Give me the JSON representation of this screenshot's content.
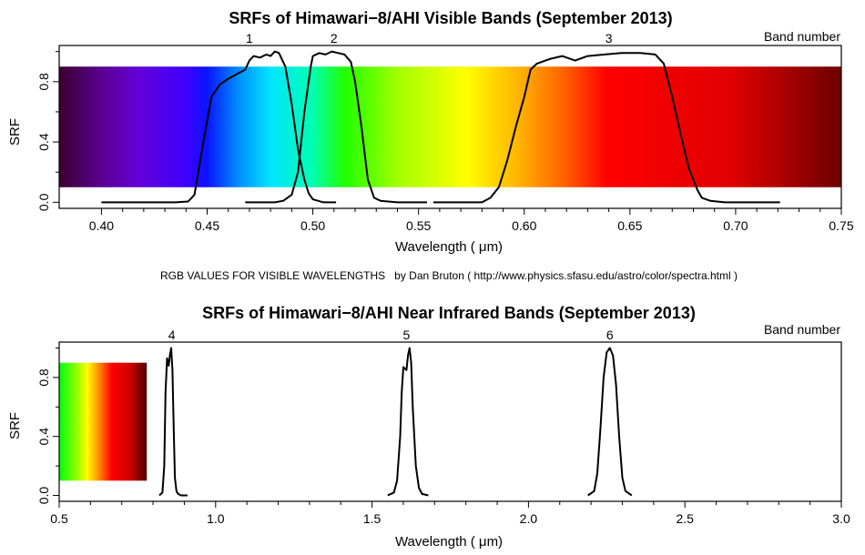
{
  "chart_data": [
    {
      "type": "line",
      "title": "SRFs of Himawari−8/AHI Visible Bands (September 2013)",
      "xlabel": "Wavelength ( μm)",
      "ylabel": "SRF",
      "xlim": [
        0.38,
        0.75
      ],
      "ylim": [
        -0.04,
        1.04
      ],
      "xticks": [
        0.4,
        0.45,
        0.5,
        0.55,
        0.6,
        0.65,
        0.7,
        0.75
      ],
      "xtick_labels": [
        "0.40",
        "0.45",
        "0.50",
        "0.55",
        "0.60",
        "0.65",
        "0.70",
        "0.75"
      ],
      "yticks": [
        0.0,
        0.4,
        0.8
      ],
      "ytick_labels": [
        "0.0",
        "0.4",
        "0.8"
      ],
      "band_number_label": "Band number",
      "spectrum_background": {
        "x_range": [
          0.38,
          0.75
        ],
        "y_range": [
          0.1,
          0.9
        ]
      },
      "series": [
        {
          "name": "1",
          "label_x": 0.47,
          "x": [
            0.4,
            0.435,
            0.441,
            0.444,
            0.447,
            0.452,
            0.456,
            0.46,
            0.464,
            0.468,
            0.47,
            0.472,
            0.475,
            0.478,
            0.48,
            0.482,
            0.484,
            0.487,
            0.49,
            0.493,
            0.496,
            0.498,
            0.5,
            0.505,
            0.511
          ],
          "y": [
            0.0,
            0.0,
            0.005,
            0.05,
            0.3,
            0.7,
            0.78,
            0.82,
            0.85,
            0.88,
            0.94,
            0.97,
            0.96,
            0.98,
            0.97,
            1.0,
            0.99,
            0.9,
            0.65,
            0.35,
            0.15,
            0.06,
            0.02,
            0.0,
            0.0
          ]
        },
        {
          "name": "2",
          "label_x": 0.51,
          "x": [
            0.468,
            0.482,
            0.486,
            0.49,
            0.493,
            0.496,
            0.499,
            0.5,
            0.503,
            0.506,
            0.509,
            0.512,
            0.515,
            0.518,
            0.52,
            0.523,
            0.526,
            0.529,
            0.532,
            0.54,
            0.554
          ],
          "y": [
            0.0,
            0.0,
            0.01,
            0.05,
            0.2,
            0.6,
            0.9,
            0.97,
            0.99,
            0.98,
            1.0,
            0.99,
            0.98,
            0.93,
            0.8,
            0.5,
            0.15,
            0.03,
            0.01,
            0.0,
            0.0
          ]
        },
        {
          "name": "3",
          "label_x": 0.64,
          "x": [
            0.557,
            0.58,
            0.584,
            0.588,
            0.592,
            0.596,
            0.6,
            0.603,
            0.606,
            0.612,
            0.618,
            0.624,
            0.63,
            0.638,
            0.646,
            0.655,
            0.662,
            0.666,
            0.67,
            0.674,
            0.678,
            0.682,
            0.684,
            0.688,
            0.695,
            0.721
          ],
          "y": [
            0.0,
            0.0,
            0.03,
            0.1,
            0.28,
            0.5,
            0.7,
            0.88,
            0.92,
            0.95,
            0.97,
            0.94,
            0.97,
            0.98,
            0.99,
            0.99,
            0.98,
            0.92,
            0.7,
            0.45,
            0.22,
            0.08,
            0.03,
            0.01,
            0.0,
            0.0
          ]
        }
      ]
    },
    {
      "type": "line",
      "title": "SRFs of Himawari−8/AHI Near Infrared Bands (September 2013)",
      "xlabel": "Wavelength ( μm)",
      "ylabel": "SRF",
      "xlim": [
        0.5,
        3.0
      ],
      "ylim": [
        -0.04,
        1.04
      ],
      "xticks": [
        0.5,
        1.0,
        1.5,
        2.0,
        2.5,
        3.0
      ],
      "xtick_labels": [
        "0.5",
        "1.0",
        "1.5",
        "2.0",
        "2.5",
        "3.0"
      ],
      "yticks": [
        0.0,
        0.4,
        0.8
      ],
      "ytick_labels": [
        "0.0",
        "0.4",
        "0.8"
      ],
      "band_number_label": "Band number",
      "spectrum_background": {
        "x_range": [
          0.5,
          0.78
        ],
        "y_range": [
          0.1,
          0.9
        ]
      },
      "series": [
        {
          "name": "4",
          "label_x": 0.86,
          "x": [
            0.82,
            0.83,
            0.836,
            0.84,
            0.845,
            0.85,
            0.854,
            0.858,
            0.862,
            0.866,
            0.87,
            0.875,
            0.88,
            0.89,
            0.91
          ],
          "y": [
            0.0,
            0.02,
            0.2,
            0.7,
            0.93,
            0.88,
            0.95,
            1.0,
            0.85,
            0.45,
            0.12,
            0.03,
            0.01,
            0.0,
            0.0
          ]
        },
        {
          "name": "5",
          "label_x": 1.61,
          "x": [
            1.55,
            1.57,
            1.58,
            1.59,
            1.595,
            1.6,
            1.61,
            1.615,
            1.62,
            1.625,
            1.63,
            1.64,
            1.65,
            1.66,
            1.68
          ],
          "y": [
            0.0,
            0.02,
            0.1,
            0.4,
            0.7,
            0.87,
            0.85,
            0.95,
            1.0,
            0.9,
            0.6,
            0.2,
            0.05,
            0.01,
            0.0
          ]
        },
        {
          "name": "6",
          "label_x": 2.26,
          "x": [
            2.19,
            2.21,
            2.22,
            2.23,
            2.24,
            2.25,
            2.26,
            2.27,
            2.28,
            2.29,
            2.3,
            2.31,
            2.33
          ],
          "y": [
            0.0,
            0.03,
            0.15,
            0.45,
            0.8,
            0.97,
            1.0,
            0.95,
            0.75,
            0.4,
            0.12,
            0.03,
            0.0
          ]
        }
      ]
    }
  ],
  "credit": "RGB VALUES FOR VISIBLE WAVELENGTHS   by Dan Bruton ( http://www.physics.sfasu.edu/astro/color/spectra.html )"
}
